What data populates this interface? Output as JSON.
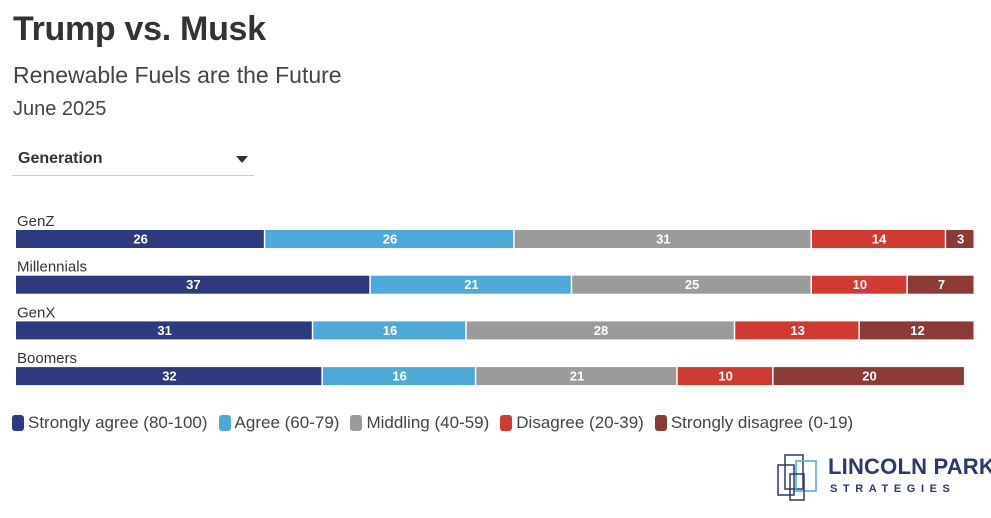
{
  "header": {
    "title": "Trump vs. Musk",
    "subtitle": "Renewable Fuels are the Future",
    "date": "June 2025"
  },
  "filter": {
    "label": "Generation"
  },
  "colors": {
    "strongly_agree": "#2e3a7e",
    "agree": "#4fa9d8",
    "middling": "#9b9b9b",
    "disagree": "#d03a33",
    "strongly_disagree": "#8b3a35"
  },
  "chart_data": {
    "type": "bar",
    "orientation": "horizontal",
    "stacked": true,
    "categories": [
      "GenZ",
      "Millennials",
      "GenX",
      "Boomers"
    ],
    "series": [
      {
        "name": "Strongly agree (80-100)",
        "color": "#2e3a7e",
        "values": [
          26,
          37,
          31,
          32
        ]
      },
      {
        "name": "Agree (60-79)",
        "color": "#4fa9d8",
        "values": [
          26,
          21,
          16,
          16
        ]
      },
      {
        "name": "Middling (40-59)",
        "color": "#9b9b9b",
        "values": [
          31,
          25,
          28,
          21
        ]
      },
      {
        "name": "Disagree (20-39)",
        "color": "#d03a33",
        "values": [
          14,
          10,
          13,
          10
        ]
      },
      {
        "name": "Strongly disagree (0-19)",
        "color": "#8b3a35",
        "values": [
          3,
          7,
          12,
          20
        ]
      }
    ],
    "xlim": [
      0,
      100
    ],
    "legend_position": "bottom",
    "grid": false
  },
  "logo": {
    "line1": "LINCOLN PARK",
    "line2": "STRATEGIES"
  }
}
